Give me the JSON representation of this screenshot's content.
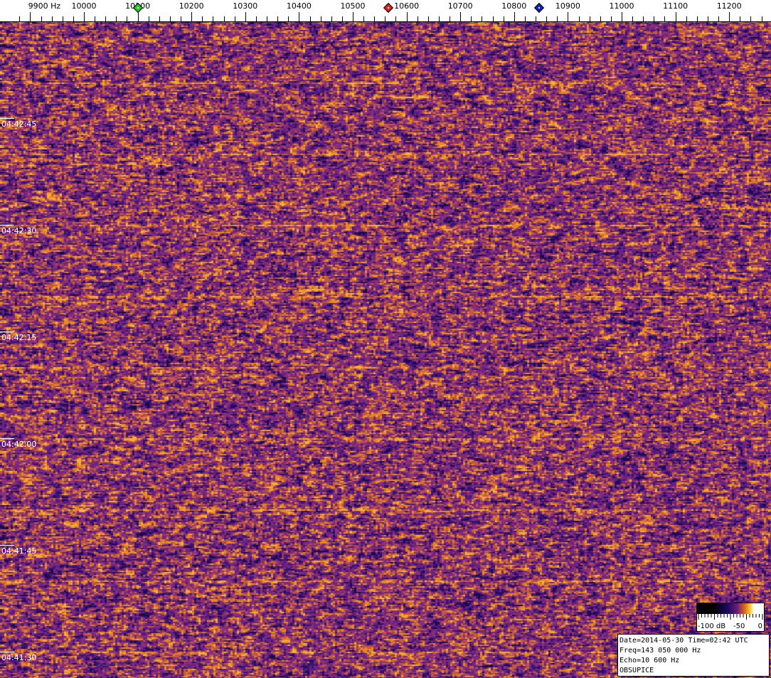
{
  "chart_data": {
    "type": "heatmap",
    "title": "",
    "xlabel": "Hz",
    "x_ticks": [
      9900,
      10000,
      10100,
      10200,
      10300,
      10400,
      10500,
      10600,
      10700,
      10800,
      10900,
      11000,
      11100,
      11200
    ],
    "x_tick_labels": [
      "9900 Hz",
      "10000",
      "10100",
      "10200",
      "10300",
      "10400",
      "10500",
      "10600",
      "10700",
      "10800",
      "10900",
      "11000",
      "11100",
      "11200"
    ],
    "xlim": [
      9870,
      11275
    ],
    "y_tick_labels": [
      "04:42:45",
      "04:42:30",
      "04:42:15",
      "04:42:00",
      "04:41:45",
      "04:41:30"
    ],
    "markers": [
      {
        "freq": 10100,
        "color": "#22cc22"
      },
      {
        "freq": 10566,
        "color": "#dd2222"
      },
      {
        "freq": 10847,
        "color": "#1122bb"
      }
    ],
    "colorscale": {
      "labels": [
        "-100 dB",
        "-50",
        "0"
      ],
      "range_db": [
        -100,
        0
      ]
    },
    "palette": [
      "#1a0850",
      "#3a1470",
      "#6a2280",
      "#8a3078",
      "#c05a40",
      "#e88a20",
      "#f5b040"
    ]
  },
  "info": {
    "line1": "Date=2014-05-30 Time=02:42 UTC",
    "line2": "Freq=143 050 000 Hz",
    "line3": "Echo=10 600 Hz",
    "line4": "OBSUPICE"
  }
}
